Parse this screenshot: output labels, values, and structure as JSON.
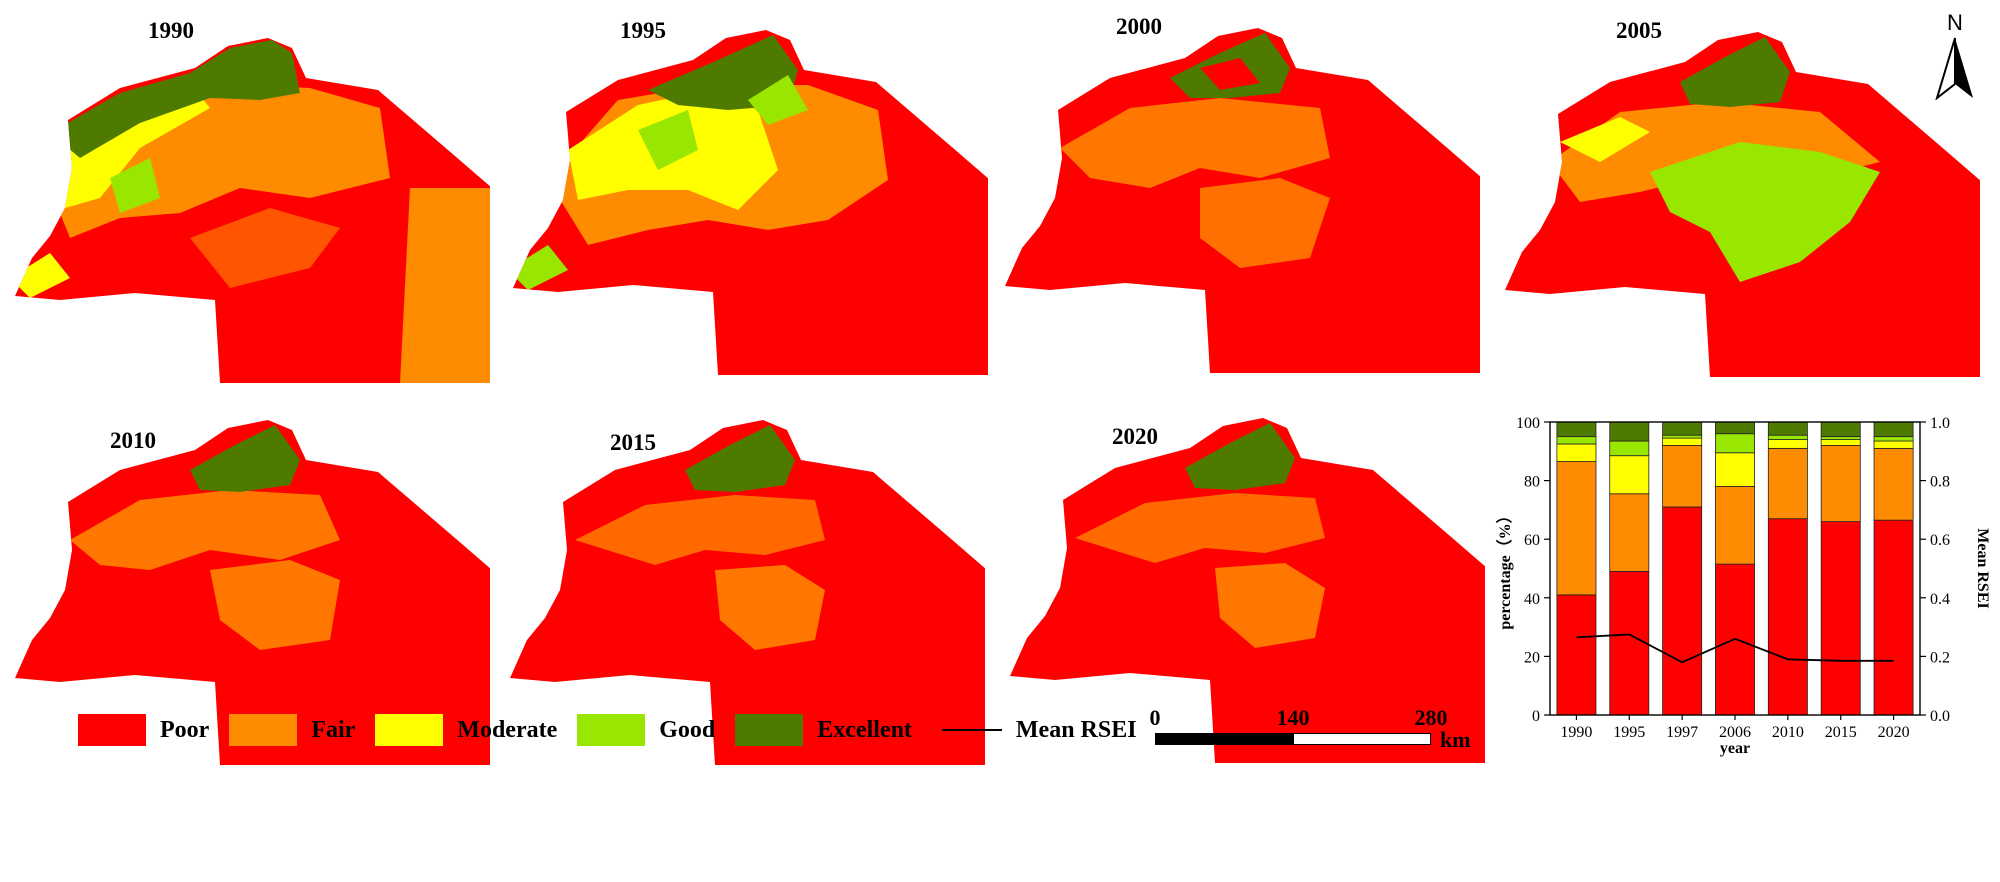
{
  "colors": {
    "poor": "#ff0000",
    "fair": "#ff8c00",
    "moderate": "#ffff00",
    "good": "#99e600",
    "excellent": "#4e7a00"
  },
  "maps": [
    {
      "year": "1990"
    },
    {
      "year": "1995"
    },
    {
      "year": "2000"
    },
    {
      "year": "2005"
    },
    {
      "year": "2010"
    },
    {
      "year": "2015"
    },
    {
      "year": "2020"
    }
  ],
  "legend": {
    "items": [
      {
        "label": "Poor",
        "color": "#ff0000"
      },
      {
        "label": "Fair",
        "color": "#ff8c00"
      },
      {
        "label": "Moderate",
        "color": "#ffff00"
      },
      {
        "label": "Good",
        "color": "#99e600"
      },
      {
        "label": "Excellent",
        "color": "#4e7a00"
      }
    ],
    "line_label": "Mean RSEI"
  },
  "scale_bar": {
    "ticks": [
      "0",
      "140",
      "280"
    ],
    "unit": "km"
  },
  "north_arrow": {
    "label": "N"
  },
  "chart_data": {
    "type": "bar",
    "stacked": true,
    "categories": [
      "1990",
      "1995",
      "1997",
      "2006",
      "2010",
      "2015",
      "2020"
    ],
    "series": [
      {
        "name": "Poor",
        "color": "#ff0000",
        "values": [
          41,
          49,
          71,
          51.5,
          67,
          66,
          66.5
        ]
      },
      {
        "name": "Fair",
        "color": "#ff8c00",
        "values": [
          45.5,
          26.5,
          21,
          26.5,
          24,
          26,
          24.5
        ]
      },
      {
        "name": "Moderate",
        "color": "#ffff00",
        "values": [
          6,
          13,
          2.5,
          11.5,
          3,
          2,
          2.5
        ]
      },
      {
        "name": "Good",
        "color": "#99e600",
        "values": [
          2.5,
          5,
          1,
          6.5,
          1.5,
          1,
          1.5
        ]
      },
      {
        "name": "Excellent",
        "color": "#4e7a00",
        "values": [
          5,
          6.5,
          4.5,
          4,
          4.5,
          5,
          5
        ]
      }
    ],
    "line": {
      "name": "Mean RSEI",
      "values": [
        0.265,
        0.275,
        0.18,
        0.26,
        0.19,
        0.185,
        0.185
      ]
    },
    "xlabel": "year",
    "ylabel": "percentage（%）",
    "y2label": "Mean RSEI",
    "ylim": [
      0,
      100
    ],
    "y2lim": [
      0,
      1
    ],
    "yticks": [
      "0",
      "20",
      "40",
      "60",
      "80",
      "100"
    ],
    "y2ticks": [
      "0.0",
      "0.2",
      "0.4",
      "0.6",
      "0.8",
      "1.0"
    ]
  }
}
